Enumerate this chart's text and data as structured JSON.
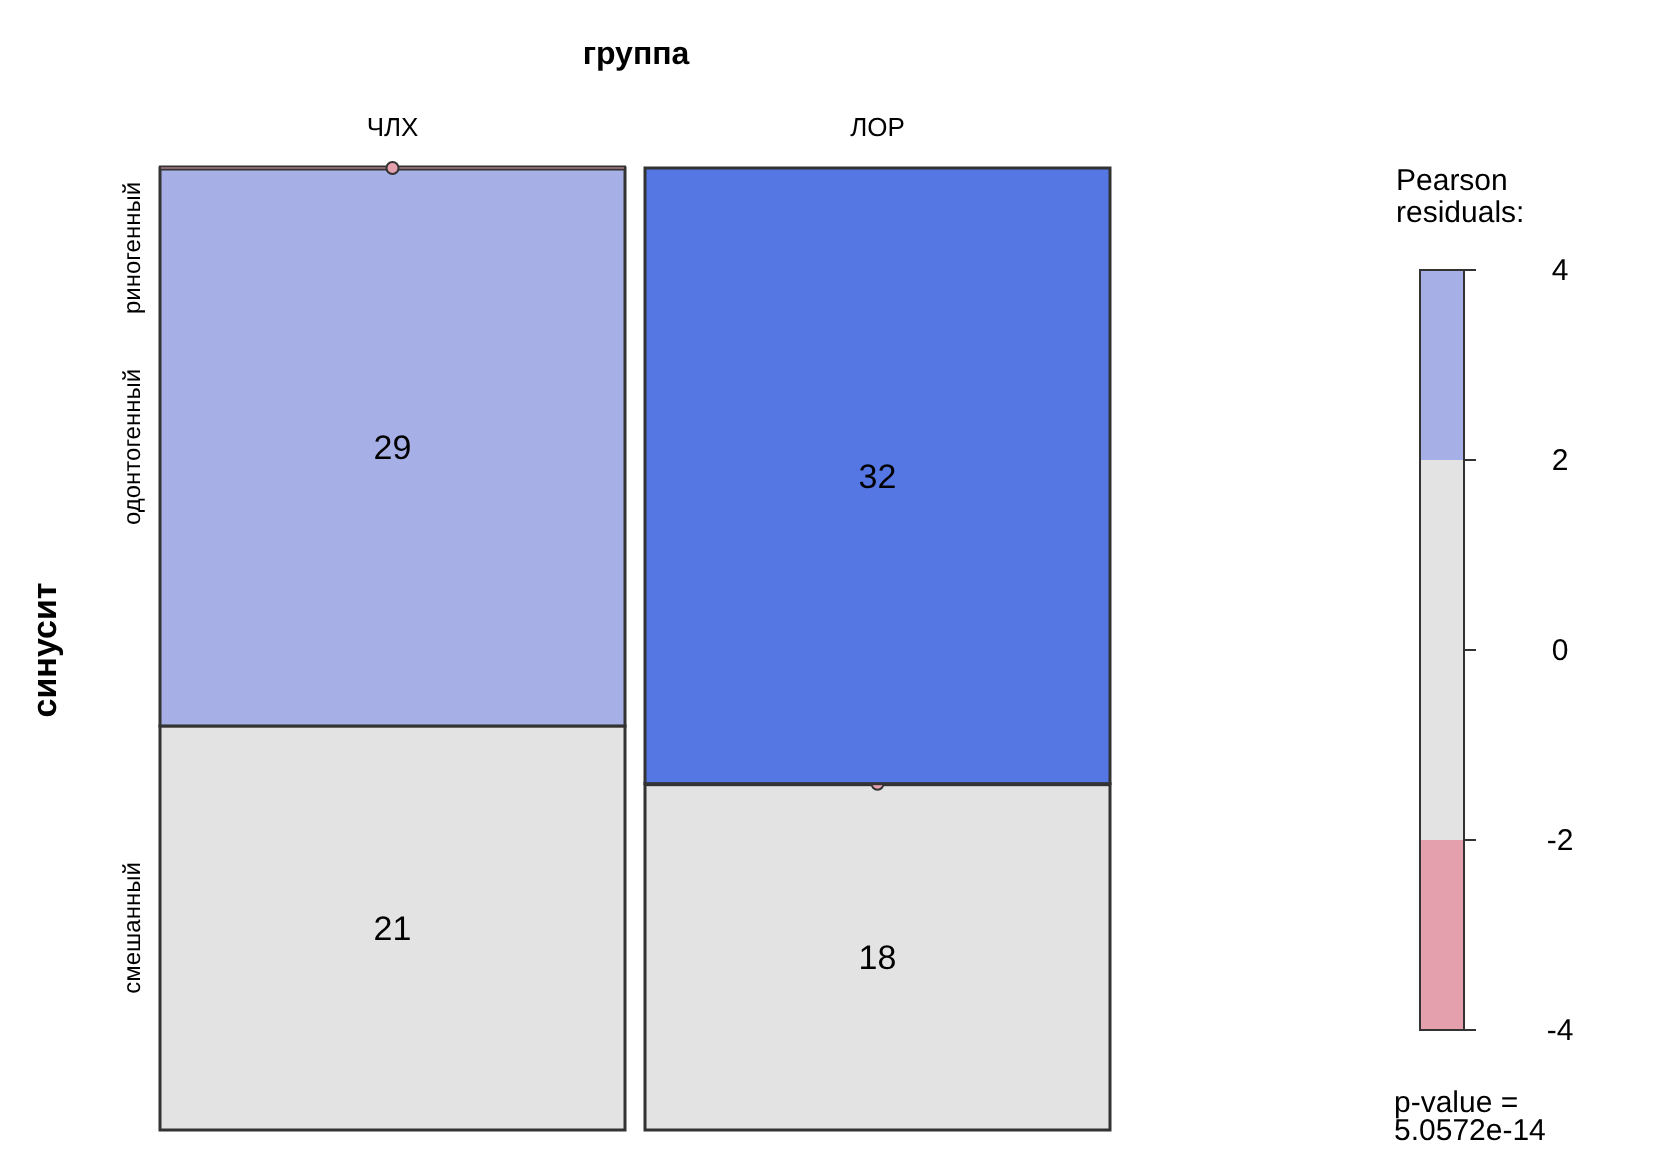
{
  "chart_data": [
    {
      "type": "bar",
      "title": "группа",
      "ylabel": "синусит",
      "stacked": true,
      "tick_labels": "x",
      "categories": [
        "ЧЛХ",
        "ЛОР"
      ],
      "series": [
        {
          "name": "смешанный",
          "colors": [
            "#e3e3e3",
            "#e3e3e3"
          ],
          "values": [
            21,
            18
          ],
          "value_labels": [
            "21",
            "18"
          ]
        },
        {
          "name": "одонтогенный",
          "colors": [
            "#a7b0e6",
            "#e5a0ad"
          ],
          "values": [
            29,
            0
          ],
          "value_labels": [
            "29",
            null
          ]
        },
        {
          "name": "риногенный",
          "colors": [
            "#e5a0ad",
            "#5577e3"
          ],
          "values": [
            0,
            32
          ],
          "value_labels": [
            null,
            "32"
          ]
        }
      ]
    },
    {
      "type": "bar",
      "title": "Pearson\nresiduals:",
      "stacked": true,
      "categories": [
        null
      ],
      "ylim": [
        -4,
        4
      ],
      "yticks": [
        -4,
        -2,
        0,
        2,
        4
      ],
      "series": [
        {
          "color": "#e3e3e3",
          "values": [
            2
          ]
        },
        {
          "color": "#a7b0e6",
          "values": [
            2
          ]
        },
        {
          "color": "#e3e3e3",
          "values": [
            -2
          ]
        },
        {
          "color": "#e5a0ad",
          "values": [
            -2
          ]
        }
      ],
      "annotations": [
        "p-value =\n5.0572e-14"
      ]
    }
  ]
}
